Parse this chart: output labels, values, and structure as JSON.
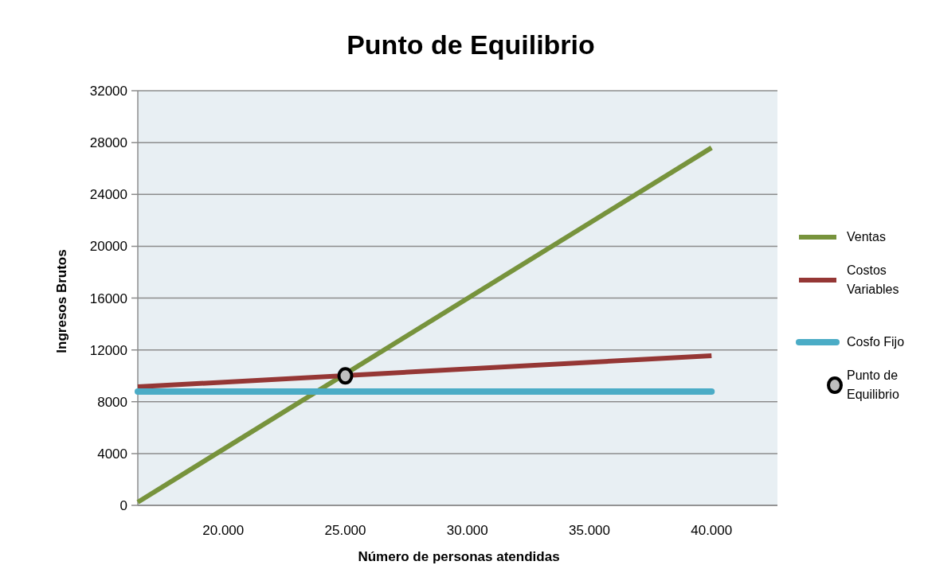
{
  "chart_data": {
    "type": "line",
    "title": "Punto de Equilibrio",
    "xlabel": "Número de personas atendidas",
    "ylabel": "Ingresos Brutos",
    "xlim": [
      16500,
      42700
    ],
    "ylim": [
      0,
      32000
    ],
    "xticks": [
      {
        "value": 20000,
        "label": "20.000"
      },
      {
        "value": 25000,
        "label": "25.000"
      },
      {
        "value": 30000,
        "label": "30.000"
      },
      {
        "value": 35000,
        "label": "35.000"
      },
      {
        "value": 40000,
        "label": "40.000"
      }
    ],
    "yticks": [
      0,
      4000,
      8000,
      12000,
      16000,
      20000,
      24000,
      28000,
      32000
    ],
    "grid": "y",
    "legend": "right",
    "series": [
      {
        "name": "Ventas",
        "color": "#77933c",
        "x": [
          16500,
          40000
        ],
        "values": [
          250,
          27600
        ]
      },
      {
        "name": "Costos Variables",
        "color": "#953735",
        "x": [
          16500,
          40000
        ],
        "values": [
          9150,
          11550
        ]
      },
      {
        "name": "Cosfo Fijo",
        "color": "#4bacc6",
        "x": [
          16500,
          40000
        ],
        "values": [
          8780,
          8780
        ]
      },
      {
        "name": "Punto de Equilibrio",
        "type": "scatter",
        "marker": "circle",
        "color": "#bfbfbf",
        "x": [
          25000
        ],
        "values": [
          10000
        ]
      }
    ]
  }
}
